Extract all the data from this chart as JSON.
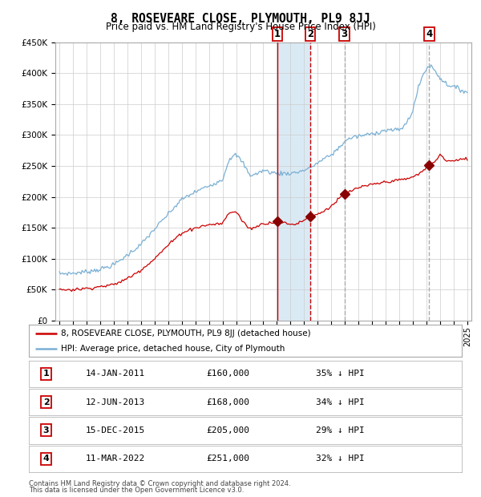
{
  "title": "8, ROSEVEARE CLOSE, PLYMOUTH, PL9 8JJ",
  "subtitle": "Price paid vs. HM Land Registry's House Price Index (HPI)",
  "legend_line1": "8, ROSEVEARE CLOSE, PLYMOUTH, PL9 8JJ (detached house)",
  "legend_line2": "HPI: Average price, detached house, City of Plymouth",
  "footer_line1": "Contains HM Land Registry data © Crown copyright and database right 2024.",
  "footer_line2": "This data is licensed under the Open Government Licence v3.0.",
  "transactions": [
    {
      "num": 1,
      "date": "14-JAN-2011",
      "price": 160000,
      "pct": "35%",
      "decimal_date": 2011.04
    },
    {
      "num": 2,
      "date": "12-JUN-2013",
      "price": 168000,
      "pct": "34%",
      "decimal_date": 2013.45
    },
    {
      "num": 3,
      "date": "15-DEC-2015",
      "price": 205000,
      "pct": "29%",
      "decimal_date": 2015.96
    },
    {
      "num": 4,
      "date": "11-MAR-2022",
      "price": 251000,
      "pct": "32%",
      "decimal_date": 2022.19
    }
  ],
  "hpi_color": "#7ab0d4",
  "price_color": "#cc0000",
  "marker_color": "#880000",
  "vline12_color": "#cc0000",
  "vline34_color": "#aaaaaa",
  "shade_color": "#daeaf5",
  "ylim": [
    0,
    450000
  ],
  "yticks": [
    0,
    50000,
    100000,
    150000,
    200000,
    250000,
    300000,
    350000,
    400000,
    450000
  ],
  "xlim_start": 1994.7,
  "xlim_end": 2025.3,
  "background_color": "#ffffff",
  "grid_color": "#cccccc",
  "hpi_anchors_t": [
    1995.0,
    1996.0,
    1997.0,
    1998.0,
    1999.0,
    2000.0,
    2001.0,
    2002.0,
    2003.0,
    2004.0,
    2005.0,
    2006.0,
    2007.0,
    2007.5,
    2008.0,
    2008.5,
    2009.0,
    2009.5,
    2010.0,
    2010.5,
    2011.0,
    2011.5,
    2012.0,
    2012.5,
    2013.0,
    2013.5,
    2014.0,
    2014.5,
    2015.0,
    2015.5,
    2016.0,
    2016.5,
    2017.0,
    2017.5,
    2018.0,
    2018.5,
    2019.0,
    2019.5,
    2020.0,
    2020.5,
    2021.0,
    2021.3,
    2021.6,
    2022.0,
    2022.3,
    2022.6,
    2023.0,
    2023.5,
    2024.0,
    2024.5,
    2025.0
  ],
  "hpi_anchors_v": [
    76000,
    76500,
    79000,
    83000,
    90000,
    106000,
    123000,
    148000,
    172000,
    196000,
    208000,
    218000,
    228000,
    262000,
    268000,
    255000,
    235000,
    237000,
    243000,
    240000,
    238000,
    238000,
    238000,
    240000,
    243000,
    248000,
    255000,
    262000,
    268000,
    278000,
    290000,
    296000,
    298000,
    300000,
    302000,
    305000,
    308000,
    308000,
    308000,
    318000,
    340000,
    368000,
    390000,
    408000,
    412000,
    405000,
    392000,
    382000,
    378000,
    373000,
    370000
  ],
  "pp_anchors_t": [
    1995.0,
    1996.0,
    1997.0,
    1998.0,
    1999.0,
    2000.0,
    2001.0,
    2002.0,
    2003.0,
    2004.0,
    2005.0,
    2006.0,
    2007.0,
    2007.5,
    2008.0,
    2008.5,
    2009.0,
    2009.5,
    2010.0,
    2010.5,
    2011.04,
    2011.5,
    2012.0,
    2012.5,
    2013.45,
    2014.0,
    2014.5,
    2015.0,
    2015.96,
    2016.5,
    2017.0,
    2017.5,
    2018.0,
    2018.5,
    2019.0,
    2019.5,
    2020.0,
    2020.5,
    2021.0,
    2021.5,
    2022.19,
    2022.5,
    2023.0,
    2023.5,
    2024.0,
    2024.5,
    2025.0
  ],
  "pp_anchors_v": [
    50000,
    50000,
    52000,
    55000,
    58000,
    68000,
    82000,
    100000,
    122000,
    142000,
    150000,
    155000,
    157000,
    175000,
    176000,
    160000,
    148000,
    152000,
    157000,
    158000,
    160000,
    158000,
    155000,
    157000,
    168000,
    172000,
    178000,
    185000,
    205000,
    210000,
    215000,
    217000,
    220000,
    222000,
    224000,
    226000,
    227000,
    229000,
    232000,
    238000,
    251000,
    255000,
    268000,
    258000,
    258000,
    260000,
    262000
  ]
}
